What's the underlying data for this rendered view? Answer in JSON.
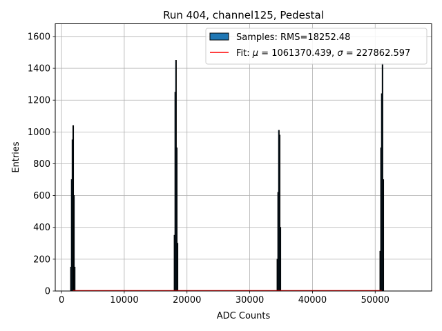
{
  "chart_data": {
    "type": "bar",
    "title": "Run 404, channel125, Pedestal",
    "xlabel": "ADC Counts",
    "ylabel": "Entries",
    "xlim": [
      -1000,
      59000
    ],
    "ylim": [
      0,
      1680
    ],
    "xticks": [
      0,
      10000,
      20000,
      30000,
      40000,
      50000
    ],
    "yticks": [
      0,
      200,
      400,
      600,
      800,
      1000,
      1200,
      1400,
      1600
    ],
    "grid": true,
    "legend_position": "top-right",
    "legend": {
      "samples_label": "Samples: RMS=18252.48",
      "fit_prefix": "Fit: ",
      "fit_mu_symbol": "μ",
      "fit_mu_value": " = 1061370.439, ",
      "fit_sigma_symbol": "σ",
      "fit_sigma_value": " = 227862.597"
    },
    "series": [
      {
        "name": "Samples: RMS=18252.48",
        "kind": "histogram",
        "color": "#1f77b4",
        "edgecolor": "#000000",
        "peaks": [
          {
            "x": 1800,
            "values": [
              150,
              700,
              950,
              1040,
              600,
              150
            ]
          },
          {
            "x": 18250,
            "values": [
              350,
              1250,
              1450,
              900,
              300
            ]
          },
          {
            "x": 34650,
            "values": [
              200,
              620,
              1010,
              980,
              400
            ]
          },
          {
            "x": 51050,
            "values": [
              250,
              900,
              1240,
              1430,
              700
            ]
          }
        ]
      },
      {
        "name": "Fit: μ = 1061370.439, σ = 227862.597",
        "kind": "line",
        "color": "#ff0000",
        "x": [
          1800,
          51050
        ],
        "y": [
          0,
          0
        ]
      }
    ]
  }
}
